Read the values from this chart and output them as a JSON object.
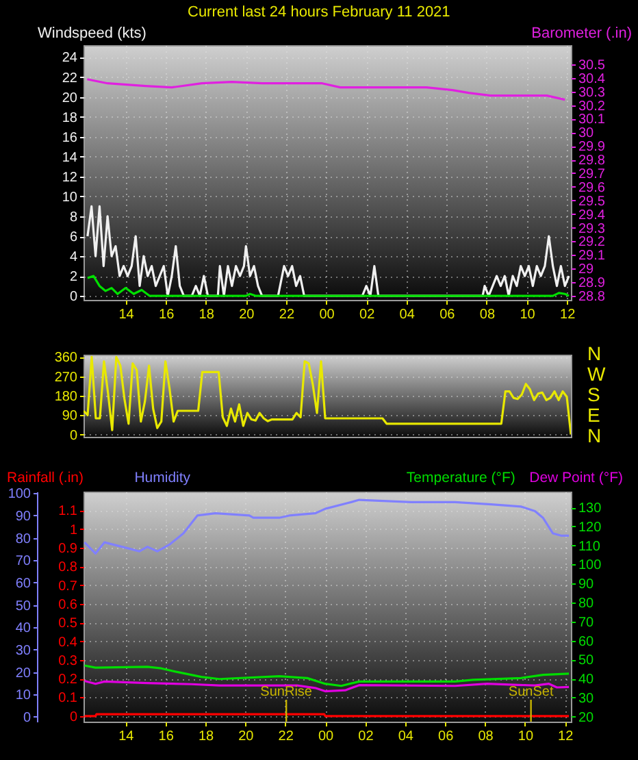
{
  "chart_data": [
    {
      "type": "line",
      "title": "Current last 24 hours February 11 2021",
      "ylabel": "Windspeed (kts)",
      "y2label": "Barometer (.in)",
      "xlim": [
        "2021-02-10T11:54",
        "2021-02-11T12:12"
      ],
      "xticks": [
        {
          "value": "2021-02-10T14:00",
          "label": "14"
        },
        {
          "value": "2021-02-10T16:00",
          "label": "16"
        },
        {
          "value": "2021-02-10T18:00",
          "label": "18"
        },
        {
          "value": "2021-02-10T20:00",
          "label": "20"
        },
        {
          "value": "2021-02-10T22:00",
          "label": "22"
        },
        {
          "value": "2021-02-11T00:00",
          "label": "00"
        },
        {
          "value": "2021-02-11T02:00",
          "label": "02"
        },
        {
          "value": "2021-02-11T04:00",
          "label": "04"
        },
        {
          "value": "2021-02-11T06:00",
          "label": "06"
        },
        {
          "value": "2021-02-11T08:00",
          "label": "08"
        },
        {
          "value": "2021-02-11T10:00",
          "label": "10"
        },
        {
          "value": "2021-02-11T12:00",
          "label": "12"
        }
      ],
      "ylim": [
        -0.4,
        25.2
      ],
      "yticks": [
        0,
        2,
        4,
        6,
        8,
        10,
        12,
        14,
        16,
        18,
        20,
        22,
        24
      ],
      "y2lim": [
        28.77,
        30.64
      ],
      "y2ticks": [
        28.8,
        28.9,
        29,
        29.1,
        29.2,
        29.3,
        29.4,
        29.5,
        29.6,
        29.7,
        29.8,
        29.9,
        30,
        30.1,
        30.2,
        30.3,
        30.4,
        30.5
      ],
      "grid": true,
      "series": [
        {
          "color": "#f0f0f0",
          "x": [
            "2021-02-10T12:06",
            "2021-02-10T12:18",
            "2021-02-10T12:30",
            "2021-02-10T12:42",
            "2021-02-10T12:54",
            "2021-02-10T13:06",
            "2021-02-10T13:18",
            "2021-02-10T13:30",
            "2021-02-10T13:42",
            "2021-02-10T13:54",
            "2021-02-10T14:06",
            "2021-02-10T14:18",
            "2021-02-10T14:30",
            "2021-02-10T14:42",
            "2021-02-10T14:54",
            "2021-02-10T15:06",
            "2021-02-10T15:18",
            "2021-02-10T15:30",
            "2021-02-10T15:42",
            "2021-02-10T15:54",
            "2021-02-10T16:06",
            "2021-02-10T16:18",
            "2021-02-10T16:30",
            "2021-02-10T16:42",
            "2021-02-10T16:54",
            "2021-02-10T17:18",
            "2021-02-10T17:30",
            "2021-02-10T17:42",
            "2021-02-10T17:54",
            "2021-02-10T18:06",
            "2021-02-10T18:36",
            "2021-02-10T18:42",
            "2021-02-10T18:54",
            "2021-02-10T19:06",
            "2021-02-10T19:18",
            "2021-02-10T19:30",
            "2021-02-10T19:42",
            "2021-02-10T19:54",
            "2021-02-10T20:00",
            "2021-02-10T20:12",
            "2021-02-10T20:24",
            "2021-02-10T20:36",
            "2021-02-10T20:48",
            "2021-02-10T21:36",
            "2021-02-10T21:42",
            "2021-02-10T21:54",
            "2021-02-10T22:06",
            "2021-02-10T22:18",
            "2021-02-10T22:30",
            "2021-02-10T22:42",
            "2021-02-10T22:54",
            "2021-02-11T01:48",
            "2021-02-11T02:00",
            "2021-02-11T02:12",
            "2021-02-11T02:24",
            "2021-02-11T02:36",
            "2021-02-11T07:48",
            "2021-02-11T07:54",
            "2021-02-11T08:06",
            "2021-02-11T08:18",
            "2021-02-11T08:30",
            "2021-02-11T08:42",
            "2021-02-11T08:54",
            "2021-02-11T09:06",
            "2021-02-11T09:18",
            "2021-02-11T09:30",
            "2021-02-11T09:42",
            "2021-02-11T09:54",
            "2021-02-11T10:06",
            "2021-02-11T10:18",
            "2021-02-11T10:30",
            "2021-02-11T10:42",
            "2021-02-11T10:54",
            "2021-02-11T11:06",
            "2021-02-11T11:18",
            "2021-02-11T11:30",
            "2021-02-11T11:42",
            "2021-02-11T11:54",
            "2021-02-11T12:06"
          ],
          "values": [
            6,
            9,
            4,
            9,
            3,
            8,
            4,
            5,
            2,
            3,
            2,
            3,
            6,
            1,
            4,
            2,
            3,
            1,
            2,
            3,
            0,
            2,
            5,
            1,
            0,
            0,
            1,
            0,
            2,
            0,
            0,
            3,
            0,
            3,
            1,
            3,
            2,
            3,
            5,
            2,
            3,
            1,
            0,
            0,
            1,
            3,
            2,
            3,
            1,
            2,
            0,
            0,
            1,
            0,
            3,
            0,
            0,
            1,
            0,
            1,
            2,
            1,
            2,
            0,
            2,
            1,
            3,
            2,
            3,
            1,
            3,
            2,
            3,
            6,
            3,
            1,
            3,
            1,
            2
          ]
        },
        {
          "color": "#00e000",
          "x": [
            "2021-02-10T12:06",
            "2021-02-10T12:24",
            "2021-02-10T12:42",
            "2021-02-10T13:00",
            "2021-02-10T13:18",
            "2021-02-10T13:36",
            "2021-02-10T14:00",
            "2021-02-10T14:24",
            "2021-02-10T14:48",
            "2021-02-10T15:12",
            "2021-02-10T16:00",
            "2021-02-10T20:00",
            "2021-02-10T20:12",
            "2021-02-10T20:30",
            "2021-02-11T11:18",
            "2021-02-11T11:36",
            "2021-02-11T11:54",
            "2021-02-11T12:06"
          ],
          "values": [
            1.8,
            2,
            1,
            0.5,
            0.8,
            0.2,
            0.8,
            0.2,
            0.6,
            0,
            0,
            0,
            0.2,
            0,
            0,
            0.3,
            0.2,
            0
          ]
        },
        {
          "color": "#e020e0",
          "axis": "y2",
          "x": [
            "2021-02-10T12:05",
            "2021-02-10T13:06",
            "2021-02-10T15:00",
            "2021-02-10T16:18",
            "2021-02-10T17:48",
            "2021-02-10T19:18",
            "2021-02-10T20:48",
            "2021-02-10T23:48",
            "2021-02-11T00:42",
            "2021-02-11T02:48",
            "2021-02-11T05:00",
            "2021-02-11T06:18",
            "2021-02-11T07:06",
            "2021-02-11T08:12",
            "2021-02-11T11:00",
            "2021-02-11T11:54"
          ],
          "values": [
            30.39,
            30.36,
            30.34,
            30.33,
            30.36,
            30.37,
            30.36,
            30.36,
            30.33,
            30.33,
            30.33,
            30.31,
            30.29,
            30.27,
            30.27,
            30.24
          ]
        }
      ]
    },
    {
      "type": "line",
      "categories": [
        null,
        null,
        null,
        null,
        null,
        null,
        null,
        null,
        null,
        null,
        null,
        null,
        null,
        null,
        null,
        null,
        null,
        null,
        null,
        null,
        null,
        null,
        null,
        null,
        null,
        null,
        null,
        null,
        null,
        null,
        null,
        null,
        null,
        null,
        null,
        null,
        null,
        null,
        null,
        null,
        null,
        null,
        null,
        null,
        null,
        null,
        null,
        null,
        null,
        null,
        null,
        null,
        null,
        null,
        null,
        null,
        null,
        null,
        null,
        null,
        null,
        null,
        null,
        null,
        null,
        null,
        null,
        null,
        null,
        null,
        null,
        null,
        null,
        null,
        null,
        null,
        null,
        null,
        null,
        null,
        null,
        null,
        null,
        null,
        null,
        null,
        null,
        null,
        null,
        null,
        null,
        null,
        null,
        null,
        null,
        null,
        null,
        null,
        null,
        null,
        null,
        null,
        null,
        null,
        null,
        null,
        null,
        null,
        null,
        null,
        null,
        null,
        null,
        null,
        null,
        null,
        null,
        null,
        null,
        null
      ],
      "ylim": [
        -11,
        371
      ],
      "yticks": [
        0,
        90,
        180,
        270,
        360
      ],
      "annotations": [
        "N",
        "W",
        "S",
        "E",
        "N"
      ],
      "tick_labels": "y",
      "grid": "y",
      "series": [
        {
          "color": "#e8e800",
          "values": [
            110,
            90,
            360,
            75,
            75,
            340,
            190,
            20,
            360,
            320,
            165,
            50,
            330,
            300,
            60,
            155,
            320,
            120,
            30,
            60,
            340,
            215,
            60,
            110,
            110,
            110,
            110,
            110,
            110,
            290,
            290,
            290,
            290,
            290,
            80,
            40,
            120,
            60,
            140,
            40,
            100,
            70,
            65,
            100,
            75,
            62,
            70,
            70,
            70,
            70,
            70,
            70,
            100,
            80,
            340,
            330,
            230,
            100,
            340,
            75,
            75,
            75,
            75,
            75,
            75,
            75,
            75,
            75,
            75,
            75,
            75,
            75,
            75,
            75,
            50,
            50,
            50,
            50,
            50,
            50,
            50,
            50,
            50,
            50,
            50,
            50,
            50,
            50,
            50,
            50,
            50,
            50,
            50,
            50,
            50,
            50,
            50,
            50,
            50,
            50,
            50,
            50,
            50,
            200,
            200,
            170,
            165,
            185,
            235,
            210,
            160,
            190,
            195,
            160,
            170,
            200,
            160,
            200,
            175,
            0
          ]
        }
      ]
    },
    {
      "type": "line",
      "xlim": [
        "2021-02-10T11:54",
        "2021-02-11T12:18"
      ],
      "xticks": [
        {
          "value": "2021-02-10T14:00",
          "label": "14"
        },
        {
          "value": "2021-02-10T16:00",
          "label": "16"
        },
        {
          "value": "2021-02-10T18:00",
          "label": "18"
        },
        {
          "value": "2021-02-10T20:00",
          "label": "20"
        },
        {
          "value": "2021-02-10T22:00",
          "label": "22"
        },
        {
          "value": "2021-02-11T00:00",
          "label": "00"
        },
        {
          "value": "2021-02-11T02:00",
          "label": "02"
        },
        {
          "value": "2021-02-11T04:00",
          "label": "04"
        },
        {
          "value": "2021-02-11T06:00",
          "label": "06"
        },
        {
          "value": "2021-02-11T08:00",
          "label": "08"
        },
        {
          "value": "2021-02-11T10:00",
          "label": "10"
        },
        {
          "value": "2021-02-11T12:00",
          "label": "12"
        }
      ],
      "ylim": [
        -0.03,
        1.2
      ],
      "yticks": [
        0,
        0.1,
        0.2,
        0.3,
        0.4,
        0.5,
        0.6,
        0.7,
        0.8,
        0.9,
        1,
        1.1
      ],
      "y2lim": [
        -2.2,
        100.7
      ],
      "y2ticks": [
        0,
        10,
        20,
        30,
        40,
        50,
        60,
        70,
        80,
        90,
        100
      ],
      "y3lim": [
        17.4,
        138.3
      ],
      "y3ticks": [
        20,
        30,
        40,
        50,
        60,
        70,
        80,
        90,
        100,
        110,
        120,
        130
      ],
      "grid": true,
      "ref_lines": [
        {
          "axis": "x",
          "value": "2021-02-10T22:03",
          "label": "SunRise",
          "color": "#c8b400"
        },
        {
          "axis": "x",
          "value": "2021-02-11T10:18",
          "label": "SunSet",
          "color": "#c8b400"
        }
      ],
      "series": [
        {
          "name": "Rainfall (.in)",
          "color": "#ff0000",
          "x": [
            "2021-02-10T11:57",
            "2021-02-10T12:30",
            "2021-02-10T12:33",
            "2021-02-10T23:57",
            "2021-02-11T00:00",
            "2021-02-11T12:12"
          ],
          "values": [
            0,
            0,
            0.01,
            0.01,
            0,
            0
          ]
        },
        {
          "name": "Humidity",
          "color": "#8080ff",
          "axis": "y2",
          "x": [
            "2021-02-10T11:57",
            "2021-02-10T12:30",
            "2021-02-10T12:57",
            "2021-02-10T14:16",
            "2021-02-10T14:42",
            "2021-02-10T15:06",
            "2021-02-10T15:36",
            "2021-02-10T16:12",
            "2021-02-10T16:54",
            "2021-02-10T17:36",
            "2021-02-10T18:30",
            "2021-02-10T20:12",
            "2021-02-10T20:24",
            "2021-02-10T21:42",
            "2021-02-10T22:12",
            "2021-02-10T23:30",
            "2021-02-11T00:00",
            "2021-02-11T01:18",
            "2021-02-11T01:42",
            "2021-02-11T04:18",
            "2021-02-11T06:30",
            "2021-02-11T08:18",
            "2021-02-11T09:48",
            "2021-02-11T10:30",
            "2021-02-11T10:54",
            "2021-02-11T11:24",
            "2021-02-11T11:48",
            "2021-02-11T12:12"
          ],
          "values": [
            78,
            73,
            78,
            75,
            74,
            76,
            74,
            77,
            82,
            90,
            91,
            90,
            89,
            89,
            90,
            91,
            93,
            96,
            97,
            96,
            96,
            95,
            94,
            92,
            89,
            82,
            81,
            81
          ]
        },
        {
          "name": "Temperature (°F)",
          "color": "#00dd00",
          "axis": "y3",
          "x": [
            "2021-02-10T11:57",
            "2021-02-10T12:30",
            "2021-02-10T15:06",
            "2021-02-10T15:48",
            "2021-02-10T16:30",
            "2021-02-10T17:48",
            "2021-02-10T18:42",
            "2021-02-10T21:42",
            "2021-02-10T23:06",
            "2021-02-11T00:00",
            "2021-02-11T00:48",
            "2021-02-11T01:42",
            "2021-02-11T06:30",
            "2021-02-11T07:24",
            "2021-02-11T09:48",
            "2021-02-11T10:54",
            "2021-02-11T12:12"
          ],
          "values": [
            46.9,
            45.8,
            46.2,
            45.4,
            43.7,
            40.9,
            39.8,
            41.3,
            40.3,
            37.3,
            36.2,
            38.5,
            38.5,
            39.4,
            40.3,
            42,
            42.6
          ]
        },
        {
          "name": "Dew Point (°F)",
          "color": "#e000e0",
          "axis": "y3",
          "x": [
            "2021-02-10T11:57",
            "2021-02-10T12:30",
            "2021-02-10T12:57",
            "2021-02-10T15:06",
            "2021-02-10T17:18",
            "2021-02-10T18:42",
            "2021-02-10T22:36",
            "2021-02-10T23:30",
            "2021-02-11T00:00",
            "2021-02-11T01:00",
            "2021-02-11T01:42",
            "2021-02-11T06:30",
            "2021-02-11T08:06",
            "2021-02-11T10:30",
            "2021-02-11T11:12",
            "2021-02-11T11:36",
            "2021-02-11T12:12"
          ],
          "values": [
            38.8,
            37.3,
            38.5,
            37.7,
            37.1,
            36.4,
            36.4,
            35.1,
            33.4,
            33.9,
            36.6,
            36.2,
            37.3,
            36.4,
            37.3,
            35.4,
            35.6
          ]
        }
      ]
    }
  ]
}
